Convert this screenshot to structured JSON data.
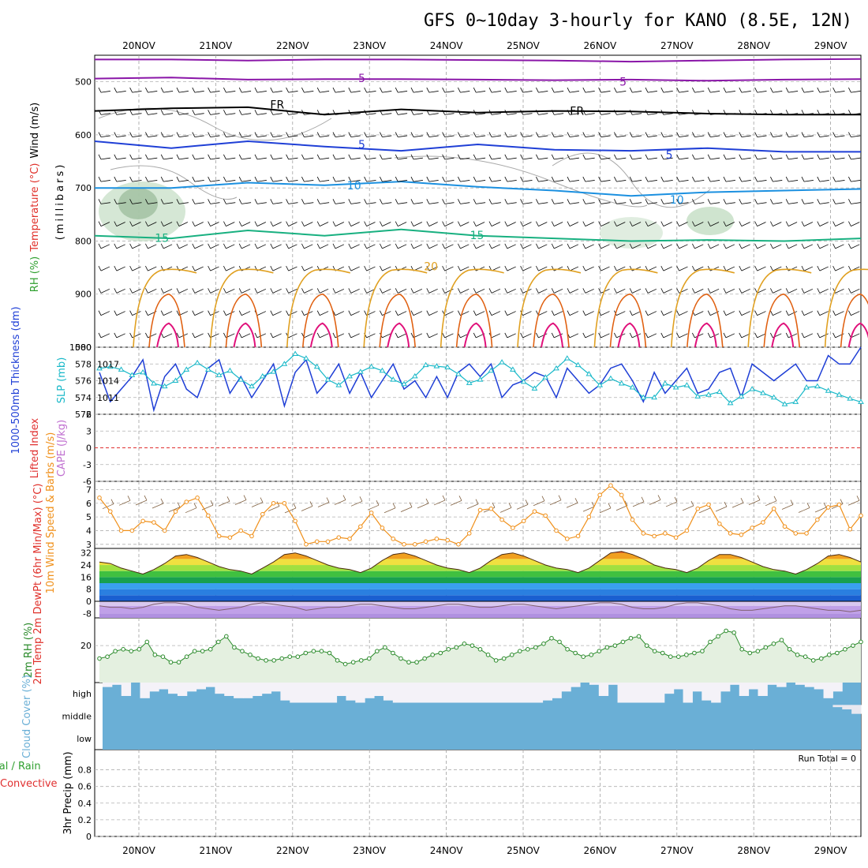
{
  "title": "GFS 0~10day 3-hourly for KANO (8.5E, 12N)",
  "colors": {
    "wind_black": "#000000",
    "temp_red": "#e0302a",
    "rh_green": "#30a030",
    "purple": "#8a16a8",
    "blue_dark": "#1f3fd6",
    "blue_light": "#1b90e0",
    "teal": "#18b080",
    "orange": "#e0a020",
    "orange2": "#e06010",
    "magenta": "#e0107a",
    "thickness": "#1f3fd6",
    "slp": "#18b8c8",
    "wind10m": "#f0901a",
    "barb": "#806040",
    "rh2m": "#2a8a2a",
    "cloud": "#6aafd6",
    "cape": "#c070d0",
    "li": "#e03030"
  },
  "chart_data": [
    {
      "type": "line",
      "panel": "upper-air",
      "dates": [
        "20NOV",
        "21NOV",
        "22NOV",
        "23NOV",
        "24NOV",
        "25NOV",
        "26NOV",
        "27NOV",
        "28NOV",
        "29NOV"
      ],
      "ylabel_parts": [
        "Wind (m/s)",
        "Temperature (°C)",
        "RH (%)"
      ],
      "ylabel_units": "(millibars)",
      "yticks": [
        "500",
        "600",
        "700",
        "800",
        "900",
        "1000"
      ],
      "ylim": [
        450,
        1000
      ],
      "contour_labels": [
        {
          "text": "5",
          "day": 2.9,
          "p": 493,
          "key": "purple"
        },
        {
          "text": "5",
          "day": 6.3,
          "p": 500,
          "key": "purple"
        },
        {
          "text": "FR",
          "day": 1.8,
          "p": 543,
          "key": "wind_black"
        },
        {
          "text": "FR",
          "day": 5.7,
          "p": 555,
          "key": "wind_black"
        },
        {
          "text": "5",
          "day": 2.9,
          "p": 618,
          "key": "blue_dark"
        },
        {
          "text": "5",
          "day": 6.9,
          "p": 637,
          "key": "blue_dark"
        },
        {
          "text": "10",
          "day": 2.8,
          "p": 695,
          "key": "blue_light"
        },
        {
          "text": "10",
          "day": 7.0,
          "p": 722,
          "key": "blue_light"
        },
        {
          "text": "15",
          "day": 0.3,
          "p": 794,
          "key": "teal"
        },
        {
          "text": "15",
          "day": 4.4,
          "p": 789,
          "key": "teal"
        },
        {
          "text": "20",
          "day": 3.8,
          "p": 848,
          "key": "orange"
        }
      ],
      "levels": [
        {
          "key": "purple",
          "p": [
            458,
            458,
            460,
            458,
            458,
            459,
            460,
            462,
            460,
            458,
            457
          ]
        },
        {
          "key": "purple",
          "p": [
            494,
            492,
            496,
            495,
            495,
            496,
            497,
            496,
            498,
            496,
            495
          ]
        },
        {
          "key": "wind_black",
          "p": [
            555,
            550,
            548,
            562,
            552,
            558,
            555,
            556,
            560,
            562,
            562
          ]
        },
        {
          "key": "blue_dark",
          "p": [
            612,
            625,
            612,
            622,
            630,
            618,
            628,
            630,
            625,
            632,
            632
          ]
        },
        {
          "key": "blue_light",
          "p": [
            700,
            700,
            690,
            695,
            688,
            698,
            705,
            715,
            708,
            705,
            702
          ]
        },
        {
          "key": "teal",
          "p": [
            790,
            795,
            780,
            790,
            778,
            790,
            795,
            800,
            798,
            800,
            795
          ]
        }
      ]
    },
    {
      "type": "line",
      "panel": "thickness-slp",
      "series": [
        {
          "name": "1000-500mb Thickness (dm)",
          "axis": "left",
          "values": [
            577,
            573.5,
            575,
            576.5,
            578.5,
            572.5,
            576.5,
            578,
            575,
            574,
            577.5,
            578.5,
            574.5,
            576.5,
            574,
            576,
            578,
            573,
            577,
            578.5,
            574.5,
            576,
            578,
            574.5,
            577,
            574,
            576,
            578,
            575,
            576,
            574,
            576.5,
            574,
            577,
            578,
            576.5,
            578,
            574,
            575.5,
            576,
            577,
            576.5,
            574,
            577.5,
            576,
            574.5,
            575.5,
            577.5,
            578,
            576,
            573.5,
            577,
            574.5,
            576,
            577.5,
            574.5,
            575,
            577,
            577.5,
            574,
            578,
            577,
            576,
            577,
            578,
            576,
            576,
            579,
            578,
            578,
            580
          ]
        },
        {
          "name": "SLP (mb)",
          "axis": "right",
          "values": [
            1016.2,
            1016.5,
            1016,
            1015,
            1015.5,
            1013.5,
            1013,
            1014,
            1016,
            1017.2,
            1016,
            1015,
            1015.8,
            1014.2,
            1013,
            1014.8,
            1015.6,
            1017,
            1018.8,
            1018,
            1016.5,
            1014.2,
            1013.2,
            1014.8,
            1015.6,
            1016.5,
            1015.8,
            1014.2,
            1013.4,
            1014.8,
            1016.8,
            1016.6,
            1016.4,
            1015.2,
            1013.6,
            1014.2,
            1015.8,
            1017.3,
            1016,
            1013.8,
            1012.6,
            1014.6,
            1016.2,
            1018,
            1016.8,
            1015.2,
            1013.2,
            1014.4,
            1013.5,
            1012.8,
            1011,
            1011,
            1013.5,
            1012.8,
            1013.2,
            1011.2,
            1011.5,
            1012,
            1010,
            1011.2,
            1012.5,
            1011.8,
            1011,
            1009.8,
            1010.2,
            1012.8,
            1013,
            1012.2,
            1011.5,
            1010.8,
            1010.2
          ]
        }
      ],
      "left_ticks": [
        "572",
        "574",
        "576",
        "578",
        "580"
      ],
      "right_ticks": [
        "1011",
        "1014",
        "1017"
      ],
      "ylabel_left": "1000-500mb Thickness (dm)",
      "ylabel_right": "SLP (mb)"
    },
    {
      "type": "line",
      "panel": "cape-li",
      "yticks": [
        "-6",
        "-3",
        "0",
        "3",
        "6"
      ],
      "ylabel_left": "Lifted Index",
      "ylabel_right": "CAPE (J/kg)",
      "values": []
    },
    {
      "type": "line",
      "panel": "wind10m",
      "ylabel": "10m Wind Speed & Barbs (m/s)",
      "yticks": [
        "3",
        "4",
        "5",
        "6",
        "7"
      ],
      "ylim": [
        2.7,
        7.6
      ],
      "values": [
        6.4,
        5.4,
        4,
        4,
        4.7,
        4.6,
        4,
        5.4,
        6.1,
        6.4,
        5.1,
        3.6,
        3.5,
        4,
        3.6,
        5.2,
        6,
        6,
        4.7,
        3,
        3.2,
        3.2,
        3.5,
        3.4,
        4.3,
        5.3,
        4.2,
        3.4,
        3,
        3,
        3.2,
        3.4,
        3.3,
        3,
        3.8,
        5.5,
        5.6,
        4.8,
        4.2,
        4.7,
        5.4,
        5.1,
        4,
        3.4,
        3.6,
        5,
        6.6,
        7.3,
        6.6,
        4.8,
        3.8,
        3.6,
        3.8,
        3.5,
        4,
        5.6,
        5.9,
        4.5,
        3.8,
        3.7,
        4.2,
        4.6,
        5.6,
        4.3,
        3.8,
        3.8,
        4.8,
        5.7,
        5.9,
        4.1,
        5.1
      ]
    },
    {
      "type": "area",
      "panel": "temp-dewpt",
      "ylabel": "2m Temp 2m DewPt (6hr Min/Max) (°C)",
      "yticks": [
        "32",
        "24",
        "16",
        "8",
        "0",
        "-8"
      ],
      "ylim": [
        -11,
        35
      ],
      "temp": [
        26,
        25,
        22,
        20,
        18,
        21,
        25,
        30,
        31,
        29,
        26,
        23,
        21,
        20,
        18,
        22,
        26,
        31,
        32,
        30,
        27,
        24,
        22,
        21,
        19,
        22,
        27,
        31,
        32,
        30,
        27,
        24,
        22,
        21,
        19,
        22,
        27,
        31,
        32,
        30,
        27,
        24,
        22,
        21,
        19,
        22,
        27,
        32,
        33,
        31,
        28,
        24,
        22,
        21,
        19,
        22,
        27,
        31,
        31,
        29,
        26,
        23,
        21,
        20,
        18,
        21,
        25,
        30,
        31,
        29,
        26
      ],
      "dewpt": [
        -3,
        -4,
        -4,
        -5,
        -4,
        -2,
        -1,
        -1,
        -2,
        -4,
        -5,
        -6,
        -5,
        -4,
        -2,
        -1,
        -2,
        -3,
        -4,
        -6,
        -5,
        -4,
        -4,
        -3,
        -2,
        -2,
        -3,
        -4,
        -5,
        -5,
        -4,
        -3,
        -2,
        -2,
        -3,
        -4,
        -4,
        -3,
        -2,
        -2,
        -3,
        -4,
        -5,
        -4,
        -3,
        -2,
        -1,
        -1,
        -2,
        -4,
        -5,
        -5,
        -4,
        -2,
        -1,
        -1,
        -2,
        -3,
        -5,
        -6,
        -6,
        -5,
        -4,
        -3,
        -3,
        -4,
        -5,
        -6,
        -6,
        -7,
        -6
      ]
    },
    {
      "type": "area",
      "panel": "rh2m",
      "ylabel": "2m RH (%)",
      "yticks": [
        "20"
      ],
      "ylim": [
        0,
        35
      ],
      "values": [
        13,
        14,
        17,
        18,
        17,
        18,
        22,
        15,
        14,
        11,
        11,
        14,
        17,
        17,
        18,
        22,
        25,
        19,
        17,
        15,
        13,
        12,
        12,
        13,
        14,
        14,
        16,
        17,
        17,
        16,
        12,
        10,
        11,
        12,
        13,
        17,
        19,
        16,
        13,
        11,
        11,
        13,
        15,
        16,
        18,
        19,
        21,
        20,
        18,
        15,
        12,
        13,
        15,
        17,
        18,
        19,
        21,
        24,
        22,
        18,
        16,
        14,
        15,
        17,
        19,
        20,
        22,
        24,
        25,
        20,
        17,
        16,
        14,
        14,
        15,
        16,
        17,
        22,
        25,
        28,
        27,
        18,
        16,
        17,
        19,
        21,
        23,
        18,
        15,
        14,
        12,
        13,
        15,
        16,
        18,
        20,
        22
      ]
    },
    {
      "type": "bar",
      "panel": "cloud",
      "ylabel": "Cloud Cover (%)",
      "layers": [
        "high",
        "middle",
        "low"
      ],
      "high": [
        80,
        90,
        40,
        100,
        30,
        60,
        70,
        50,
        40,
        60,
        70,
        80,
        50,
        40,
        30,
        30,
        40,
        50,
        60,
        20,
        10,
        10,
        10,
        10,
        10,
        40,
        20,
        10,
        30,
        40,
        20,
        10,
        10,
        10,
        10,
        10,
        10,
        10,
        10,
        10,
        10,
        10,
        10,
        10,
        10,
        10,
        10,
        20,
        30,
        60,
        80,
        100,
        90,
        40,
        90,
        10,
        10,
        10,
        10,
        10,
        50,
        70,
        10,
        60,
        20,
        10,
        60,
        90,
        40,
        70,
        40,
        90,
        80,
        100,
        90,
        80,
        70,
        30,
        60,
        100,
        100
      ],
      "middle": [
        0,
        0,
        0,
        0,
        0,
        0,
        0,
        0,
        0,
        0,
        0,
        0,
        0,
        0,
        0,
        0,
        0,
        0,
        0,
        0,
        0,
        0,
        0,
        0,
        0,
        0,
        0,
        0,
        0,
        0,
        0,
        0,
        0,
        0,
        0,
        0,
        0,
        0,
        0,
        0,
        0,
        0,
        0,
        0,
        0,
        0,
        0,
        0,
        0,
        0,
        0,
        0,
        0,
        0,
        0,
        0,
        0,
        0,
        0,
        0,
        0,
        0,
        0,
        0,
        0,
        0,
        0,
        0,
        0,
        0,
        0,
        0,
        0,
        0,
        0,
        0,
        0,
        0,
        10,
        20,
        40
      ]
    },
    {
      "type": "bar",
      "panel": "precip",
      "ylabel_left": "Total / Rain",
      "ylabel_left2": "Convective",
      "ylabel_right": "3hr Precip (mm)",
      "yticks": [
        "0",
        "0.2",
        "0.4",
        "0.6",
        "0.8"
      ],
      "ylim": [
        0,
        1
      ],
      "run_total": "Run Total = 0",
      "values": []
    }
  ]
}
